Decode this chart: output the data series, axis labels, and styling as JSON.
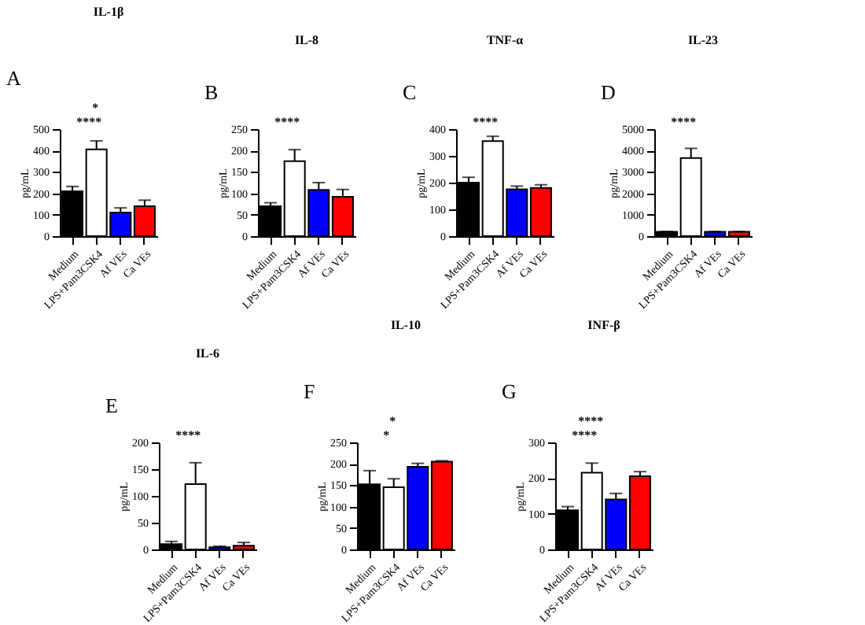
{
  "chart_data": [
    {
      "type": "bar",
      "title": "IL-1β",
      "ylabel": "pg/mL",
      "categories": [
        "Medium",
        "LPS+Pam3CSK4",
        "Af VEs",
        "Ca VEs"
      ],
      "values": [
        210,
        405,
        110,
        140
      ],
      "colors": [
        "#000000",
        "#ffffff",
        "#0000ff",
        "#ff0000"
      ],
      "errors": [
        [
          210,
          232
        ],
        [
          405,
          445
        ],
        [
          110,
          132
        ],
        [
          140,
          168
        ]
      ],
      "ylim": [
        0,
        500
      ],
      "yticks": [
        0,
        100,
        200,
        300,
        400,
        500
      ],
      "annotations": [
        "A",
        "****",
        "*"
      ]
    },
    {
      "type": "bar",
      "title": "IL-8",
      "ylabel": "pg/mL",
      "categories": [
        "Medium",
        "LPS+Pam3CSK4",
        "Af VEs",
        "Ca VEs"
      ],
      "values": [
        70,
        175,
        108,
        92
      ],
      "colors": [
        "#000000",
        "#ffffff",
        "#0000ff",
        "#ff0000"
      ],
      "errors": [
        [
          70,
          78
        ],
        [
          175,
          202
        ],
        [
          108,
          125
        ],
        [
          92,
          109
        ]
      ],
      "ylim": [
        0,
        250
      ],
      "yticks": [
        0,
        50,
        100,
        150,
        200,
        250
      ],
      "annotations": [
        "B",
        "****"
      ]
    },
    {
      "type": "bar",
      "title": "TNF-α",
      "ylabel": "pg/mL",
      "categories": [
        "Medium",
        "LPS+Pam3CSK4",
        "Af VEs",
        "Ca VEs"
      ],
      "values": [
        200,
        355,
        175,
        180
      ],
      "colors": [
        "#000000",
        "#ffffff",
        "#0000ff",
        "#ff0000"
      ],
      "errors": [
        [
          200,
          220
        ],
        [
          355,
          373
        ],
        [
          175,
          187
        ],
        [
          180,
          192
        ]
      ],
      "ylim": [
        0,
        400
      ],
      "yticks": [
        0,
        100,
        200,
        300,
        400
      ],
      "annotations": [
        "C",
        "****"
      ]
    },
    {
      "type": "bar",
      "title": "IL-23",
      "ylabel": "pg/mL",
      "categories": [
        "Medium",
        "LPS+Pam3CSK4",
        "Af VEs",
        "Ca VEs"
      ],
      "values": [
        200,
        3650,
        200,
        200
      ],
      "colors": [
        "#000000",
        "#ffffff",
        "#0000ff",
        "#ff0000"
      ],
      "errors": [
        [
          200,
          220
        ],
        [
          3650,
          4100
        ],
        [
          200,
          215
        ],
        [
          200,
          215
        ]
      ],
      "ylim": [
        0,
        5000
      ],
      "yticks": [
        0,
        1000,
        2000,
        3000,
        4000,
        5000
      ],
      "annotations": [
        "D",
        "****"
      ]
    },
    {
      "type": "bar",
      "title": "IL-6",
      "ylabel": "pg/mL",
      "categories": [
        "Medium",
        "LPS+Pam3CSK4",
        "Af VEs",
        "Ca VEs"
      ],
      "values": [
        10,
        122,
        4,
        7
      ],
      "colors": [
        "#000000",
        "#ffffff",
        "#0000ff",
        "#ff0000"
      ],
      "errors": [
        [
          10,
          15
        ],
        [
          122,
          162
        ],
        [
          4,
          6
        ],
        [
          7,
          13
        ]
      ],
      "ylim": [
        0,
        200
      ],
      "yticks": [
        0,
        50,
        100,
        150,
        200
      ],
      "annotations": [
        "E",
        "****"
      ]
    },
    {
      "type": "bar",
      "title": "IL-10",
      "ylabel": "pg/mL",
      "categories": [
        "Medium",
        "LPS+Pam3CSK4",
        "Af VEs",
        "Ca VEs"
      ],
      "values": [
        152,
        145,
        193,
        205
      ],
      "colors": [
        "#000000",
        "#ffffff",
        "#0000ff",
        "#ff0000"
      ],
      "errors": [
        [
          152,
          184
        ],
        [
          145,
          165
        ],
        [
          193,
          201
        ],
        [
          205,
          207
        ]
      ],
      "ylim": [
        0,
        250
      ],
      "yticks": [
        0,
        50,
        100,
        150,
        200,
        250
      ],
      "annotations": [
        "F",
        "*",
        "*"
      ]
    },
    {
      "type": "bar",
      "title": "INF-β",
      "ylabel": "pg/mL",
      "categories": [
        "Medium",
        "LPS+Pam3CSK4",
        "Af VEs",
        "Ca VEs"
      ],
      "values": [
        110,
        215,
        140,
        205
      ],
      "colors": [
        "#000000",
        "#ffffff",
        "#0000ff",
        "#ff0000"
      ],
      "errors": [
        [
          110,
          120
        ],
        [
          215,
          242
        ],
        [
          140,
          157
        ],
        [
          205,
          218
        ]
      ],
      "ylim": [
        0,
        300
      ],
      "yticks": [
        0,
        100,
        200,
        300
      ],
      "annotations": [
        "G",
        "****",
        "****"
      ]
    }
  ]
}
